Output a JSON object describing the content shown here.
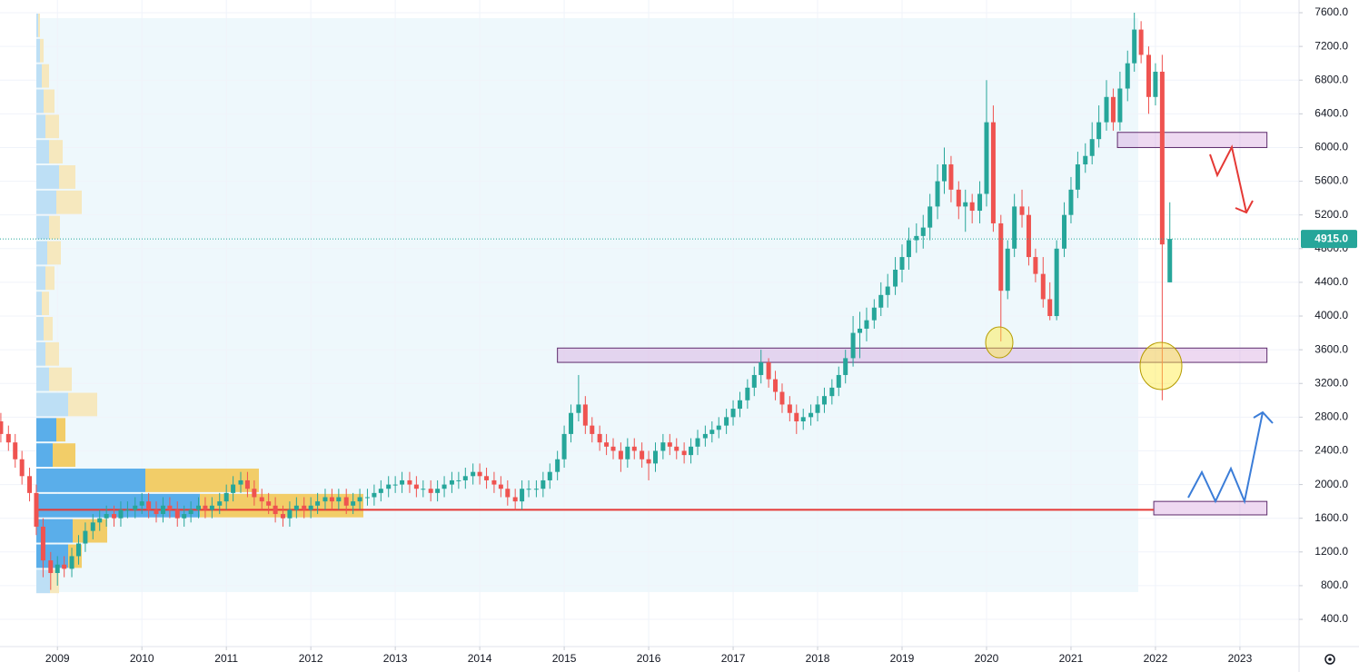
{
  "chart_data": {
    "type": "candlestick",
    "xlim": [
      2008.32,
      2023.7
    ],
    "ylim": [
      77,
      7751
    ],
    "xticks": [
      2009,
      2010,
      2011,
      2012,
      2013,
      2014,
      2015,
      2016,
      2017,
      2018,
      2019,
      2020,
      2021,
      2022,
      2023
    ],
    "yticks": [
      {
        "value": 400,
        "label": "400.0"
      },
      {
        "value": 800,
        "label": "800.0"
      },
      {
        "value": 1200,
        "label": "1200.0"
      },
      {
        "value": 1600,
        "label": "1600.0"
      },
      {
        "value": 2000,
        "label": "2000.0"
      },
      {
        "value": 2400,
        "label": "2400.0"
      },
      {
        "value": 2800,
        "label": "2800.0"
      },
      {
        "value": 3200,
        "label": "3200.0"
      },
      {
        "value": 3600,
        "label": "3600.0"
      },
      {
        "value": 4000,
        "label": "4000.0"
      },
      {
        "value": 4400,
        "label": "4400.0"
      },
      {
        "value": 4800,
        "label": "4800.0"
      },
      {
        "value": 5200,
        "label": "5200.0"
      },
      {
        "value": 5600,
        "label": "5600.0"
      },
      {
        "value": 6000,
        "label": "6000.0"
      },
      {
        "value": 6400,
        "label": "6400.0"
      },
      {
        "value": 6800,
        "label": "6800.0"
      },
      {
        "value": 7200,
        "label": "7200.0"
      },
      {
        "value": 7600,
        "label": "7600.0"
      }
    ],
    "grid": true,
    "up_color": "#26a69a",
    "down_color": "#ef5350",
    "last_price": {
      "value": 4915,
      "label": "4915.0"
    },
    "candles": {
      "x": [
        2008.33,
        2008.42,
        2008.5,
        2008.58,
        2008.67,
        2008.75,
        2008.83,
        2008.92,
        2009,
        2009.08,
        2009.17,
        2009.25,
        2009.33,
        2009.42,
        2009.5,
        2009.58,
        2009.67,
        2009.75,
        2009.83,
        2009.92,
        2010,
        2010.08,
        2010.17,
        2010.25,
        2010.33,
        2010.42,
        2010.5,
        2010.58,
        2010.67,
        2010.75,
        2010.83,
        2010.92,
        2011,
        2011.08,
        2011.17,
        2011.25,
        2011.33,
        2011.42,
        2011.5,
        2011.58,
        2011.67,
        2011.75,
        2011.83,
        2011.92,
        2012,
        2012.08,
        2012.17,
        2012.25,
        2012.33,
        2012.42,
        2012.5,
        2012.58,
        2012.67,
        2012.75,
        2012.83,
        2012.92,
        2013,
        2013.08,
        2013.17,
        2013.25,
        2013.33,
        2013.42,
        2013.5,
        2013.58,
        2013.67,
        2013.75,
        2013.83,
        2013.92,
        2014,
        2014.08,
        2014.17,
        2014.25,
        2014.33,
        2014.42,
        2014.5,
        2014.58,
        2014.67,
        2014.75,
        2014.83,
        2014.92,
        2015,
        2015.08,
        2015.17,
        2015.25,
        2015.33,
        2015.42,
        2015.5,
        2015.58,
        2015.67,
        2015.75,
        2015.83,
        2015.92,
        2016,
        2016.08,
        2016.17,
        2016.25,
        2016.33,
        2016.42,
        2016.5,
        2016.58,
        2016.67,
        2016.75,
        2016.83,
        2016.92,
        2017,
        2017.08,
        2017.17,
        2017.25,
        2017.33,
        2017.42,
        2017.5,
        2017.58,
        2017.67,
        2017.75,
        2017.83,
        2017.92,
        2018,
        2018.08,
        2018.17,
        2018.25,
        2018.33,
        2018.42,
        2018.5,
        2018.58,
        2018.67,
        2018.75,
        2018.83,
        2018.92,
        2019,
        2019.08,
        2019.17,
        2019.25,
        2019.33,
        2019.42,
        2019.5,
        2019.58,
        2019.67,
        2019.75,
        2019.83,
        2019.92,
        2020,
        2020.08,
        2020.17,
        2020.25,
        2020.33,
        2020.42,
        2020.5,
        2020.58,
        2020.67,
        2020.75,
        2020.83,
        2020.92,
        2021,
        2021.08,
        2021.17,
        2021.25,
        2021.33,
        2021.42,
        2021.5,
        2021.58,
        2021.67,
        2021.75,
        2021.83,
        2021.92,
        2022,
        2022.08,
        2022.17
      ],
      "open": [
        2750,
        2600,
        2500,
        2300,
        2100,
        1900,
        1500,
        1100,
        950,
        1050,
        1000,
        1150,
        1300,
        1450,
        1550,
        1600,
        1650,
        1600,
        1700,
        1700,
        1750,
        1800,
        1700,
        1650,
        1750,
        1700,
        1600,
        1650,
        1700,
        1750,
        1700,
        1750,
        1800,
        1900,
        2000,
        2050,
        1950,
        1850,
        1800,
        1750,
        1650,
        1600,
        1700,
        1750,
        1700,
        1750,
        1800,
        1850,
        1800,
        1850,
        1750,
        1800,
        1850,
        1850,
        1900,
        1950,
        2000,
        2000,
        2050,
        2000,
        1950,
        1950,
        1900,
        1950,
        2000,
        2050,
        2050,
        2100,
        2150,
        2100,
        2050,
        2000,
        1950,
        1850,
        1800,
        1950,
        1950,
        1950,
        2050,
        2150,
        2300,
        2600,
        2850,
        2950,
        2700,
        2600,
        2500,
        2450,
        2400,
        2300,
        2450,
        2400,
        2300,
        2250,
        2400,
        2500,
        2450,
        2400,
        2350,
        2450,
        2550,
        2600,
        2650,
        2700,
        2800,
        2900,
        3000,
        3150,
        3300,
        3450,
        3250,
        3100,
        2950,
        2850,
        2750,
        2800,
        2850,
        2950,
        3050,
        3150,
        3300,
        3500,
        3800,
        3850,
        3950,
        4100,
        4250,
        4350,
        4550,
        4700,
        4900,
        4950,
        5050,
        5300,
        5600,
        5800,
        5500,
        5300,
        5350,
        5250,
        5450,
        6300,
        5100,
        4300,
        4800,
        5300,
        5200,
        4700,
        4500,
        4200,
        4000,
        4800,
        5200,
        5500,
        5800,
        5900,
        6100,
        6300,
        6600,
        6300,
        6700,
        7000,
        7400,
        7100,
        6600,
        6900,
        4400
      ],
      "high": [
        2850,
        2700,
        2600,
        2400,
        2200,
        2000,
        1600,
        1200,
        1150,
        1150,
        1250,
        1400,
        1550,
        1650,
        1700,
        1750,
        1750,
        1800,
        1800,
        1850,
        1900,
        1900,
        1800,
        1850,
        1850,
        1800,
        1750,
        1800,
        1850,
        1850,
        1850,
        1900,
        2000,
        2100,
        2150,
        2150,
        2050,
        1950,
        1900,
        1850,
        1750,
        1800,
        1850,
        1850,
        1850,
        1900,
        1950,
        1950,
        1950,
        1950,
        1900,
        1950,
        1950,
        2000,
        2050,
        2100,
        2100,
        2150,
        2150,
        2100,
        2050,
        2050,
        2050,
        2100,
        2150,
        2150,
        2200,
        2250,
        2250,
        2200,
        2150,
        2100,
        2050,
        1950,
        2050,
        2050,
        2050,
        2150,
        2250,
        2400,
        2700,
        2950,
        3300,
        3050,
        2800,
        2700,
        2600,
        2550,
        2500,
        2550,
        2550,
        2500,
        2400,
        2500,
        2600,
        2600,
        2550,
        2500,
        2550,
        2650,
        2700,
        2750,
        2800,
        2900,
        3000,
        3100,
        3250,
        3400,
        3600,
        3500,
        3350,
        3200,
        3050,
        2950,
        2900,
        2950,
        3050,
        3150,
        3250,
        3400,
        3600,
        4000,
        4050,
        4100,
        4200,
        4400,
        4500,
        4700,
        4850,
        5050,
        5100,
        5200,
        5450,
        5800,
        6000,
        5900,
        5600,
        5500,
        5450,
        5600,
        6800,
        6500,
        5200,
        4900,
        5450,
        5500,
        5300,
        4800,
        4700,
        4400,
        4900,
        5350,
        5650,
        5950,
        6050,
        6300,
        6500,
        6800,
        6700,
        6900,
        7150,
        7600,
        7500,
        7200,
        7000,
        7100,
        5350
      ],
      "low": [
        2500,
        2400,
        2200,
        2000,
        1800,
        1400,
        900,
        750,
        800,
        900,
        900,
        1050,
        1200,
        1350,
        1450,
        1500,
        1500,
        1500,
        1600,
        1600,
        1650,
        1600,
        1550,
        1550,
        1600,
        1500,
        1500,
        1550,
        1600,
        1600,
        1600,
        1650,
        1700,
        1800,
        1900,
        1850,
        1750,
        1700,
        1650,
        1550,
        1500,
        1500,
        1600,
        1600,
        1600,
        1650,
        1700,
        1700,
        1700,
        1650,
        1650,
        1700,
        1750,
        1750,
        1800,
        1850,
        1900,
        1900,
        1900,
        1850,
        1850,
        1800,
        1800,
        1850,
        1900,
        1950,
        1950,
        2000,
        2000,
        1950,
        1900,
        1850,
        1750,
        1700,
        1700,
        1850,
        1850,
        1850,
        1950,
        2050,
        2200,
        2500,
        2750,
        2600,
        2500,
        2400,
        2350,
        2300,
        2150,
        2200,
        2300,
        2200,
        2050,
        2150,
        2300,
        2350,
        2300,
        2250,
        2250,
        2350,
        2450,
        2500,
        2550,
        2600,
        2700,
        2800,
        2900,
        3050,
        3200,
        3150,
        3000,
        2850,
        2750,
        2600,
        2650,
        2700,
        2750,
        2850,
        2950,
        3050,
        3200,
        3400,
        3500,
        3700,
        3850,
        4000,
        4100,
        4250,
        4400,
        4550,
        4750,
        4800,
        4900,
        5150,
        5450,
        5350,
        5150,
        5000,
        5100,
        5100,
        5300,
        5000,
        3700,
        4200,
        4700,
        5050,
        4600,
        4400,
        4100,
        3950,
        3950,
        4700,
        5100,
        5400,
        5700,
        5800,
        6000,
        6200,
        6200,
        6200,
        6550,
        6900,
        7000,
        6400,
        6500,
        3000,
        4400
      ],
      "close": [
        2600,
        2500,
        2300,
        2100,
        1900,
        1500,
        1100,
        950,
        1050,
        1000,
        1150,
        1300,
        1450,
        1550,
        1600,
        1650,
        1600,
        1700,
        1700,
        1750,
        1800,
        1700,
        1650,
        1750,
        1700,
        1600,
        1650,
        1700,
        1750,
        1700,
        1750,
        1800,
        1900,
        2000,
        2050,
        1950,
        1850,
        1800,
        1750,
        1650,
        1600,
        1700,
        1750,
        1700,
        1750,
        1800,
        1850,
        1800,
        1850,
        1750,
        1800,
        1850,
        1850,
        1900,
        1950,
        2000,
        2000,
        2050,
        2000,
        1950,
        1950,
        1900,
        1950,
        2000,
        2050,
        2050,
        2100,
        2150,
        2100,
        2050,
        2000,
        1950,
        1850,
        1800,
        1950,
        1950,
        1950,
        2050,
        2150,
        2300,
        2600,
        2850,
        2950,
        2700,
        2600,
        2500,
        2450,
        2400,
        2300,
        2450,
        2400,
        2300,
        2250,
        2400,
        2500,
        2450,
        2400,
        2350,
        2450,
        2550,
        2600,
        2650,
        2700,
        2800,
        2900,
        3000,
        3150,
        3300,
        3450,
        3250,
        3100,
        2950,
        2850,
        2750,
        2800,
        2850,
        2950,
        3050,
        3150,
        3300,
        3500,
        3800,
        3850,
        3950,
        4100,
        4250,
        4350,
        4550,
        4700,
        4900,
        4950,
        5050,
        5300,
        5600,
        5800,
        5500,
        5300,
        5350,
        5250,
        5450,
        6300,
        5100,
        4300,
        4800,
        5300,
        5200,
        4700,
        4500,
        4200,
        4000,
        4800,
        5200,
        5500,
        5800,
        5900,
        6100,
        6300,
        6600,
        6300,
        6700,
        7000,
        7400,
        7100,
        6600,
        6900,
        4850,
        4915
      ]
    },
    "volume_profile": {
      "levels": [
        700,
        1000,
        1300,
        1600,
        1900,
        2200,
        2500,
        2800,
        3100,
        3400,
        3700,
        4000,
        4300,
        4600,
        4900,
        5200,
        5500,
        5800,
        6100,
        6400,
        6700,
        7000,
        7300
      ],
      "up": [
        15,
        35,
        40,
        180,
        120,
        18,
        22,
        35,
        14,
        10,
        8,
        6,
        10,
        12,
        14,
        22,
        25,
        14,
        10,
        8,
        6,
        4,
        2
      ],
      "down": [
        10,
        15,
        38,
        180,
        125,
        25,
        10,
        32,
        25,
        15,
        10,
        8,
        10,
        15,
        12,
        28,
        18,
        15,
        15,
        12,
        8,
        4,
        2
      ],
      "value_area": [
        1000,
        2800
      ],
      "up_color": "#5aaeea",
      "down_color": "#f2cd68",
      "up_color_light": "#bddff5",
      "down_color_light": "#f6e8be"
    },
    "support": {
      "value": 1700,
      "from": 2008.75,
      "to": 2021.98,
      "color": "#e53935"
    },
    "zones": [
      {
        "low": 3450,
        "high": 3620,
        "from": 2014.92,
        "to": 2023.32
      },
      {
        "low": 6000,
        "high": 6180,
        "from": 2021.55,
        "to": 2023.32
      },
      {
        "low": 1640,
        "high": 1800,
        "from": 2021.98,
        "to": 2023.32
      }
    ]
  }
}
